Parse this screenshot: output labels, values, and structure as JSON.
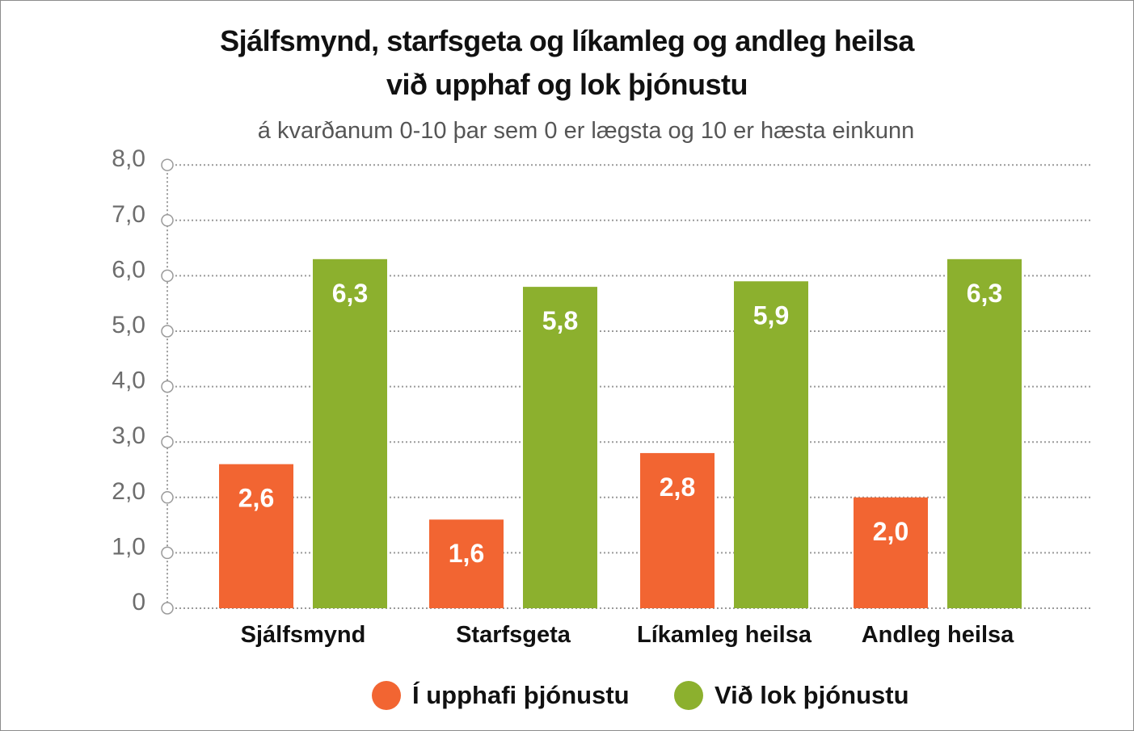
{
  "chart_data": {
    "type": "bar",
    "title_line1": "Sjálfsmynd, starfsgeta og líkamleg og andleg heilsa",
    "title_line2": "við upphaf og lok þjónustu",
    "subtitle": "á kvarðanum 0-10 þar sem 0 er lægsta og 10 er hæsta einkunn",
    "categories": [
      "Sjálfsmynd",
      "Starfsgeta",
      "Líkamleg heilsa",
      "Andleg heilsa"
    ],
    "series": [
      {
        "name": "Í upphafi þjónustu",
        "color": "#f26532",
        "values": [
          2.6,
          1.6,
          2.8,
          2.0
        ],
        "labels": [
          "2,6",
          "1,6",
          "2,8",
          "2,0"
        ]
      },
      {
        "name": "Við lok þjónustu",
        "color": "#8cb02e",
        "values": [
          6.3,
          5.8,
          5.9,
          6.3
        ],
        "labels": [
          "6,3",
          "5,8",
          "5,9",
          "6,3"
        ]
      }
    ],
    "ylim": [
      0,
      8
    ],
    "yticks": [
      0,
      1,
      2,
      3,
      4,
      5,
      6,
      7,
      8
    ],
    "ytick_labels": [
      "0",
      "1,0",
      "2,0",
      "3,0",
      "4,0",
      "5,0",
      "6,0",
      "7,0",
      "8,0"
    ],
    "grid": true,
    "legend_position": "bottom-center",
    "xlabel": "",
    "ylabel": ""
  }
}
